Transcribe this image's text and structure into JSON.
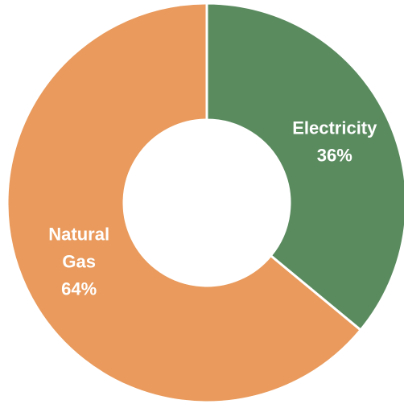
{
  "chart_data": {
    "type": "pie",
    "donut": true,
    "title": "",
    "legend": "none",
    "slices": [
      {
        "label_lines": [
          "Electricity"
        ],
        "percent_text": "36%",
        "value": 36,
        "color": "#5a8b5f"
      },
      {
        "label_lines": [
          "Natural",
          "Gas"
        ],
        "percent_text": "64%",
        "value": 64,
        "color": "#e99a5c"
      }
    ]
  }
}
